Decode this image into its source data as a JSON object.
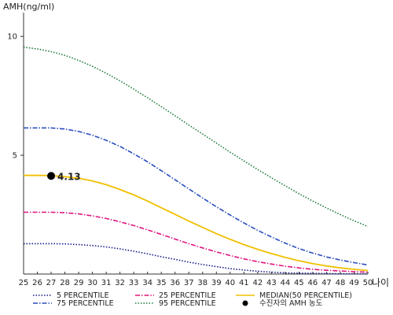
{
  "chart_data": {
    "type": "line",
    "ylabel": "AMH(ng/ml)",
    "xlabel": "나이",
    "xlim": [
      25,
      50
    ],
    "ylim": [
      0,
      11
    ],
    "x_ticks": [
      25,
      26,
      27,
      28,
      29,
      30,
      31,
      32,
      33,
      34,
      35,
      36,
      37,
      38,
      39,
      40,
      41,
      42,
      43,
      44,
      45,
      46,
      47,
      48,
      49,
      50
    ],
    "y_ticks": [
      5,
      10
    ],
    "grid": false,
    "legend_position": "bottom",
    "x": [
      25,
      26,
      27,
      28,
      29,
      30,
      31,
      32,
      33,
      34,
      35,
      36,
      37,
      38,
      39,
      40,
      41,
      42,
      43,
      44,
      45,
      46,
      47,
      48,
      49,
      50
    ],
    "series": [
      {
        "name": "5 PERCENTILE",
        "color": "#1a1a8c",
        "dash": "1.5 2",
        "values": [
          1.28,
          1.28,
          1.28,
          1.27,
          1.24,
          1.2,
          1.14,
          1.06,
          0.96,
          0.85,
          0.73,
          0.62,
          0.5,
          0.4,
          0.31,
          0.23,
          0.17,
          0.12,
          0.08,
          0.05,
          0.04,
          0.03,
          0.02,
          0.01,
          0.01,
          0.01
        ]
      },
      {
        "name": "25 PERCENTILE",
        "color": "#e0157d",
        "dash": "6 2 1.5 2",
        "values": [
          2.6,
          2.6,
          2.6,
          2.58,
          2.53,
          2.45,
          2.34,
          2.2,
          2.04,
          1.86,
          1.67,
          1.47,
          1.28,
          1.1,
          0.93,
          0.78,
          0.64,
          0.52,
          0.42,
          0.33,
          0.26,
          0.2,
          0.16,
          0.13,
          0.1,
          0.08
        ]
      },
      {
        "name": "MEDIAN(50 PERCENTILE)",
        "color": "#f0c000",
        "dash": "",
        "values": [
          4.15,
          4.15,
          4.14,
          4.1,
          4.03,
          3.92,
          3.76,
          3.56,
          3.33,
          3.07,
          2.79,
          2.51,
          2.23,
          1.96,
          1.7,
          1.46,
          1.24,
          1.04,
          0.86,
          0.7,
          0.56,
          0.44,
          0.34,
          0.26,
          0.2,
          0.15
        ]
      },
      {
        "name": "75 PERCENTILE",
        "color": "#2a4dbd",
        "dash": "6 2 1.5 2",
        "values": [
          6.15,
          6.15,
          6.15,
          6.1,
          6.0,
          5.84,
          5.63,
          5.37,
          5.06,
          4.72,
          4.35,
          3.97,
          3.58,
          3.2,
          2.83,
          2.48,
          2.15,
          1.84,
          1.56,
          1.3,
          1.07,
          0.88,
          0.72,
          0.59,
          0.48,
          0.38
        ]
      },
      {
        "name": "95 PERCENTILE",
        "color": "#1f7a3a",
        "dash": "1.5 2",
        "values": [
          9.55,
          9.47,
          9.36,
          9.2,
          8.99,
          8.74,
          8.45,
          8.13,
          7.78,
          7.42,
          7.04,
          6.66,
          6.27,
          5.89,
          5.51,
          5.13,
          4.76,
          4.4,
          4.05,
          3.71,
          3.38,
          3.07,
          2.78,
          2.5,
          2.24,
          2.0
        ]
      }
    ],
    "patient": {
      "name": "수진자의 AMH 농도",
      "x": 27,
      "y": 4.13,
      "label": "4.13",
      "color": "#000000"
    }
  }
}
